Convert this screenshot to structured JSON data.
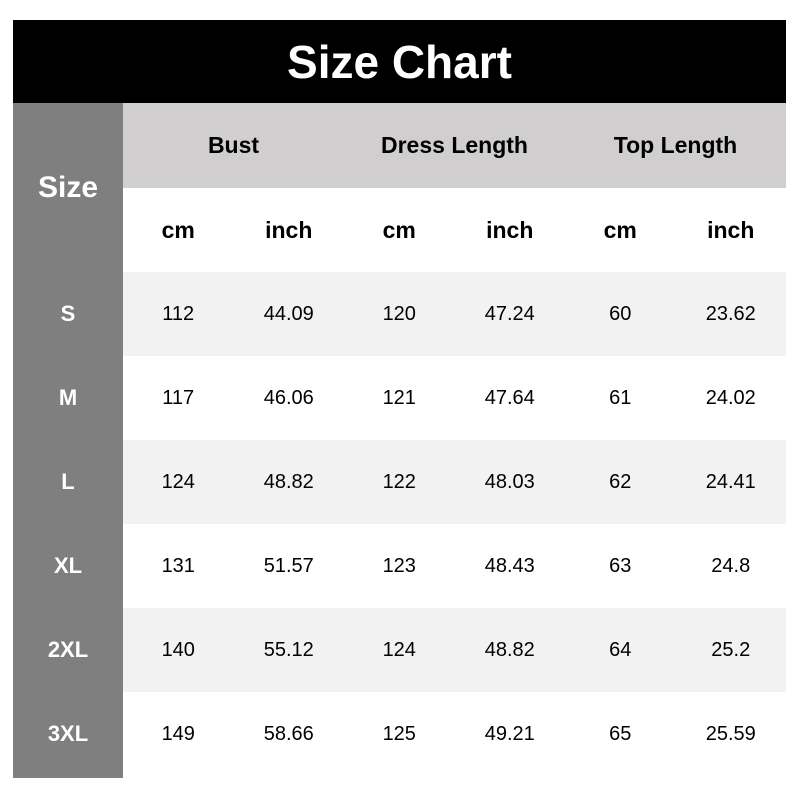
{
  "title": "Size Chart",
  "size_header": "Size",
  "groups": [
    "Bust",
    "Dress Length",
    "Top Length"
  ],
  "units": [
    "cm",
    "inch",
    "cm",
    "inch",
    "cm",
    "inch"
  ],
  "rows": [
    {
      "size": "S",
      "values": [
        "112",
        "44.09",
        "120",
        "47.24",
        "60",
        "23.62"
      ]
    },
    {
      "size": "M",
      "values": [
        "117",
        "46.06",
        "121",
        "47.64",
        "61",
        "24.02"
      ]
    },
    {
      "size": "L",
      "values": [
        "124",
        "48.82",
        "122",
        "48.03",
        "62",
        "24.41"
      ]
    },
    {
      "size": "XL",
      "values": [
        "131",
        "51.57",
        "123",
        "48.43",
        "63",
        "24.8"
      ]
    },
    {
      "size": "2XL",
      "values": [
        "140",
        "55.12",
        "124",
        "48.82",
        "64",
        "25.2"
      ]
    },
    {
      "size": "3XL",
      "values": [
        "149",
        "58.66",
        "125",
        "49.21",
        "65",
        "25.59"
      ]
    }
  ]
}
